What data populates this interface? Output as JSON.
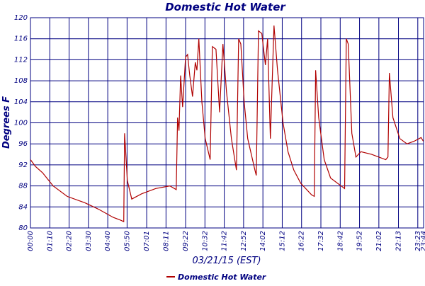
{
  "chart_data": {
    "type": "line",
    "title": "Domestic Hot Water",
    "xlabel": "03/21/15 (EST)",
    "ylabel": "Degrees F",
    "x": [
      0,
      18,
      44,
      82,
      133,
      197,
      249,
      300,
      326,
      338,
      341,
      351,
      367,
      403,
      454,
      505,
      528,
      533,
      538,
      544,
      551,
      562,
      569,
      577,
      587,
      597,
      603,
      610,
      621,
      633,
      651,
      659,
      672,
      685,
      697,
      710,
      728,
      746,
      754,
      762,
      774,
      787,
      813,
      818,
      826,
      838,
      851,
      859,
      869,
      882,
      895,
      915,
      933,
      954,
      979,
      1018,
      1028,
      1033,
      1044,
      1064,
      1087,
      1138,
      1144,
      1151,
      1164,
      1179,
      1197,
      1236,
      1287,
      1295,
      1300,
      1313,
      1338,
      1364,
      1390,
      1415,
      1423
    ],
    "series": [
      {
        "name": "Domestic Hot Water",
        "color": "#b00000",
        "values": [
          93,
          91.7,
          90.5,
          88,
          86,
          84.8,
          83.5,
          82,
          81.5,
          81.2,
          98,
          89,
          85.5,
          86.5,
          87.5,
          88,
          87.3,
          101,
          98.5,
          109,
          103,
          112.5,
          113,
          109,
          105,
          111.5,
          110,
          116,
          104,
          97,
          93,
          114.5,
          114,
          102,
          115,
          106,
          97,
          91,
          116,
          115,
          104,
          97,
          91,
          90,
          117.5,
          117,
          111,
          116,
          97,
          118.5,
          110,
          100,
          94.5,
          91,
          88.5,
          86.3,
          86,
          110,
          101,
          93,
          89.5,
          87.5,
          116,
          115,
          98,
          93.5,
          94.5,
          94,
          93,
          93.5,
          109.5,
          101,
          97,
          96,
          96.5,
          97.2,
          96.5
        ]
      }
    ],
    "xlim": [
      0,
      1424
    ],
    "xticks": [
      {
        "value": 0,
        "label": "00:00"
      },
      {
        "value": 70,
        "label": "01:10"
      },
      {
        "value": 140,
        "label": "02:20"
      },
      {
        "value": 210,
        "label": "03:30"
      },
      {
        "value": 280,
        "label": "04:40"
      },
      {
        "value": 350,
        "label": "05:50"
      },
      {
        "value": 421,
        "label": "07:01"
      },
      {
        "value": 491,
        "label": "08:11"
      },
      {
        "value": 562,
        "label": "09:22"
      },
      {
        "value": 632,
        "label": "10:32"
      },
      {
        "value": 702,
        "label": "11:42"
      },
      {
        "value": 772,
        "label": "12:52"
      },
      {
        "value": 842,
        "label": "14:02"
      },
      {
        "value": 912,
        "label": "15:12"
      },
      {
        "value": 982,
        "label": "16:22"
      },
      {
        "value": 1052,
        "label": "17:32"
      },
      {
        "value": 1122,
        "label": "18:42"
      },
      {
        "value": 1192,
        "label": "19:52"
      },
      {
        "value": 1262,
        "label": "21:02"
      },
      {
        "value": 1333,
        "label": "22:13"
      },
      {
        "value": 1403,
        "label": "23:23"
      },
      {
        "value": 1424,
        "label": "23:44"
      }
    ],
    "ylim": [
      80,
      120
    ],
    "yticks": [
      80,
      84,
      88,
      92,
      96,
      100,
      104,
      108,
      112,
      116,
      120
    ],
    "grid": true,
    "legend": "bottom"
  }
}
